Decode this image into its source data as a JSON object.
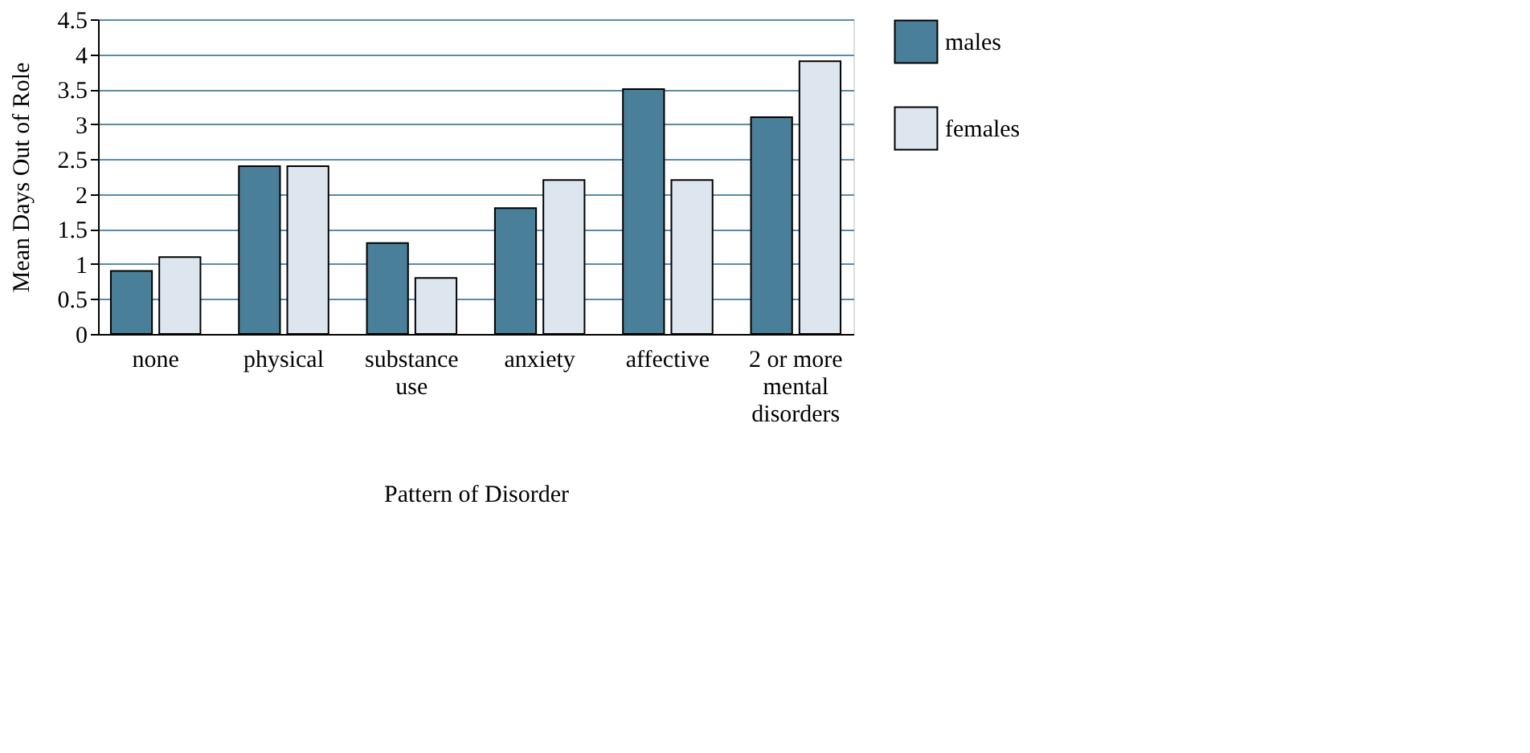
{
  "chart_data": {
    "type": "bar",
    "xlabel": "Pattern of Disorder",
    "ylabel": "Mean Days Out of Role",
    "categories": [
      "none",
      "physical",
      "substance\nuse",
      "anxiety",
      "affective",
      "2 or more\nmental\ndisorders"
    ],
    "series": [
      {
        "name": "males",
        "color": "#4a7f9a",
        "values": [
          0.9,
          2.4,
          1.3,
          1.8,
          3.5,
          3.1
        ]
      },
      {
        "name": "females",
        "color": "#dde6ee",
        "values": [
          1.1,
          2.4,
          0.8,
          2.2,
          2.2,
          3.9
        ]
      }
    ],
    "ylim": [
      0,
      4.5
    ],
    "yticks": [
      0,
      0.5,
      1,
      1.5,
      2,
      2.5,
      3,
      3.5,
      4,
      4.5
    ],
    "grid": "y",
    "legend": "right"
  }
}
